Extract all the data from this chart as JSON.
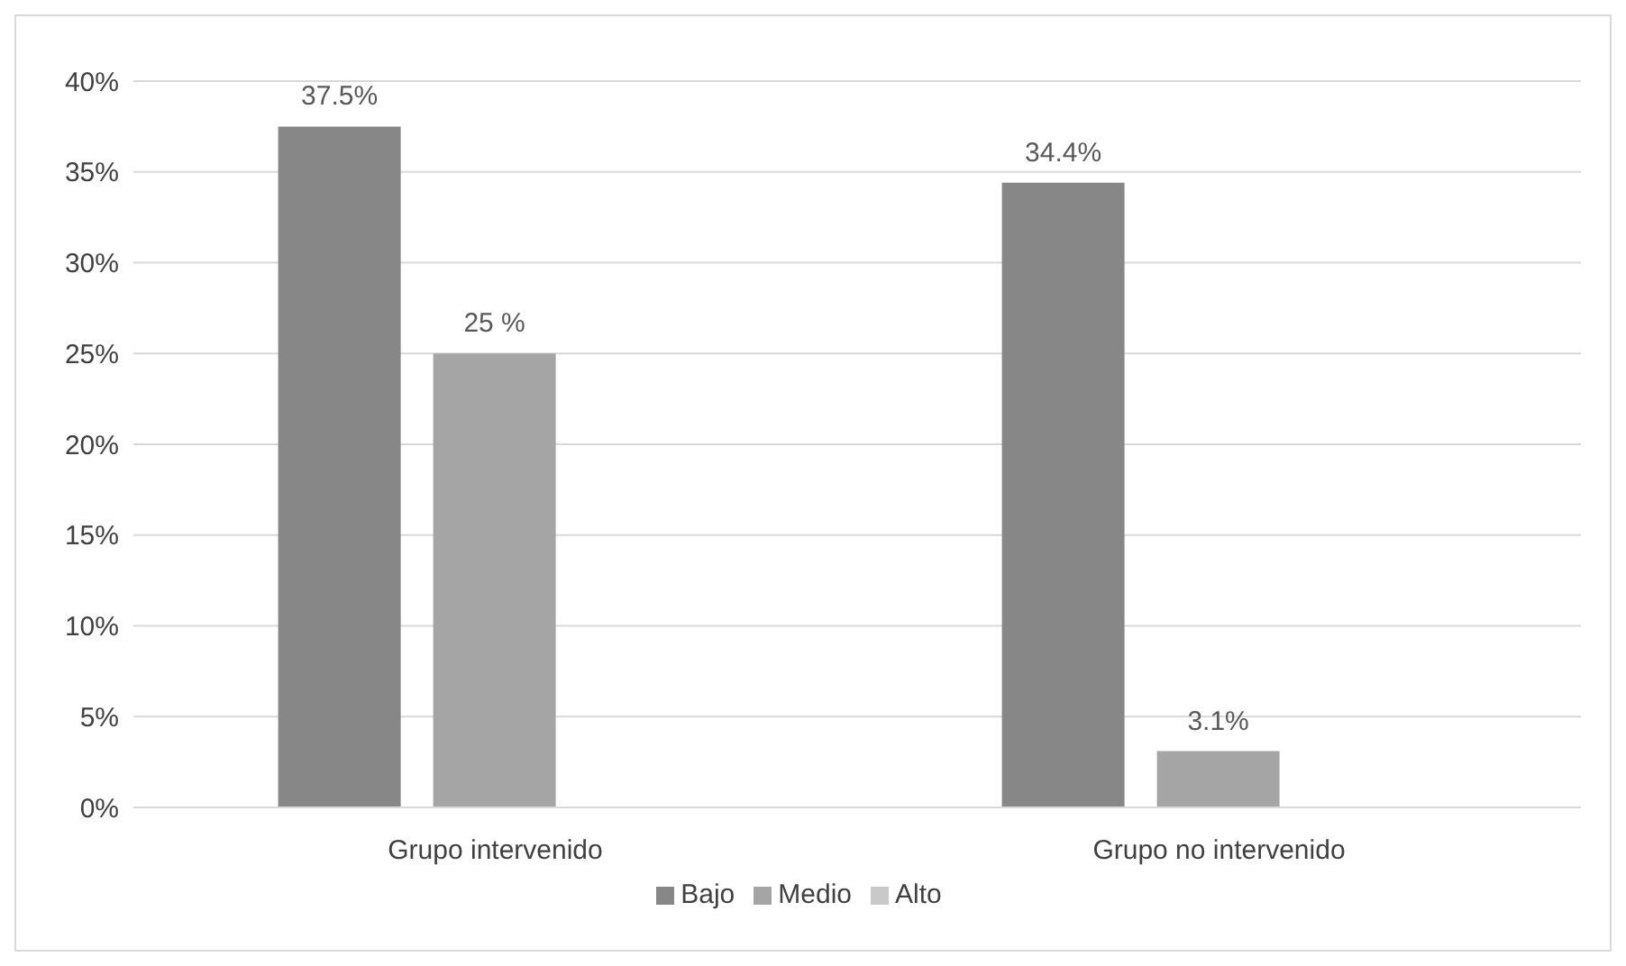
{
  "chart_data": {
    "type": "bar",
    "categories": [
      "Grupo intervenido",
      "Grupo no intervenido"
    ],
    "series": [
      {
        "name": "Bajo",
        "color": "#878787",
        "values": [
          37.5,
          34.4
        ],
        "value_labels": [
          "37.5%",
          "34.4%"
        ]
      },
      {
        "name": "Medio",
        "color": "#a5a5a5",
        "values": [
          25,
          3.1
        ],
        "value_labels": [
          "25 %",
          "3.1%"
        ]
      },
      {
        "name": "Alto",
        "color": "#c9c9c9",
        "values": [
          null,
          null
        ]
      }
    ],
    "ylim": [
      0,
      40
    ],
    "yticks": [
      {
        "value": 0,
        "label": "0%"
      },
      {
        "value": 5,
        "label": "5%"
      },
      {
        "value": 10,
        "label": "10%"
      },
      {
        "value": 15,
        "label": "15%"
      },
      {
        "value": 20,
        "label": "20%"
      },
      {
        "value": 25,
        "label": "25%"
      },
      {
        "value": 30,
        "label": "30%"
      },
      {
        "value": 35,
        "label": "35%"
      },
      {
        "value": 40,
        "label": "40%"
      }
    ],
    "grid": "y",
    "legend": "bottom"
  }
}
